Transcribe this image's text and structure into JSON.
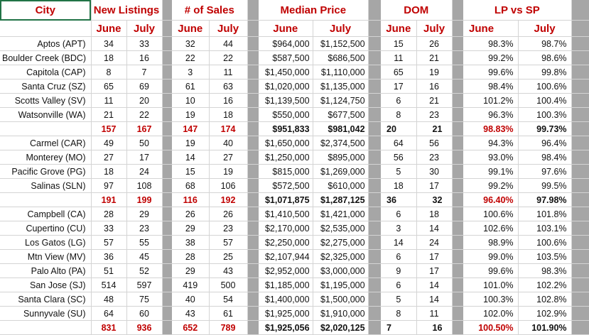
{
  "headers": {
    "city": "City",
    "new_listings": "New Listings",
    "sales": "# of Sales",
    "median_price": "Median Price",
    "dom": "DOM",
    "lp_sp": "LP vs SP"
  },
  "subheaders": {
    "nl_june": "June",
    "nl_july": "July",
    "s_june": "June",
    "s_july": "July",
    "mp_june": "June",
    "mp_july": "July",
    "d_june": "June",
    "d_july": "July",
    "l_june": "June",
    "l_july": "July"
  },
  "rows": [
    {
      "type": "data",
      "city": "Aptos (APT)",
      "nl_june": "34",
      "nl_july": "33",
      "s_june": "32",
      "s_july": "44",
      "mp_june": "$964,000",
      "mp_july": "$1,152,500",
      "d_june": "15",
      "d_july": "26",
      "l_june": "98.3%",
      "l_july": "98.7%"
    },
    {
      "type": "data",
      "city": "Boulder Creek (BDC)",
      "nl_june": "18",
      "nl_july": "16",
      "s_june": "22",
      "s_july": "22",
      "mp_june": "$587,500",
      "mp_july": "$686,500",
      "d_june": "11",
      "d_july": "21",
      "l_june": "99.2%",
      "l_july": "98.6%"
    },
    {
      "type": "data",
      "city": "Capitola (CAP)",
      "nl_june": "8",
      "nl_july": "7",
      "s_june": "3",
      "s_july": "11",
      "mp_june": "$1,450,000",
      "mp_july": "$1,110,000",
      "d_june": "65",
      "d_july": "19",
      "l_june": "99.6%",
      "l_july": "99.8%"
    },
    {
      "type": "data",
      "city": "Santa Cruz (SZ)",
      "nl_june": "65",
      "nl_july": "69",
      "s_june": "61",
      "s_july": "63",
      "mp_june": "$1,020,000",
      "mp_july": "$1,135,000",
      "d_june": "17",
      "d_july": "16",
      "l_june": "98.4%",
      "l_july": "100.6%"
    },
    {
      "type": "data",
      "city": "Scotts Valley (SV)",
      "nl_june": "11",
      "nl_july": "20",
      "s_june": "10",
      "s_july": "16",
      "mp_june": "$1,139,500",
      "mp_july": "$1,124,750",
      "d_june": "6",
      "d_july": "21",
      "l_june": "101.2%",
      "l_july": "100.4%"
    },
    {
      "type": "data",
      "city": "Watsonville (WA)",
      "nl_june": "21",
      "nl_july": "22",
      "s_june": "19",
      "s_july": "18",
      "mp_june": "$550,000",
      "mp_july": "$677,500",
      "d_june": "8",
      "d_july": "23",
      "l_june": "96.3%",
      "l_july": "100.3%"
    },
    {
      "type": "total",
      "city": "",
      "nl_june": "157",
      "nl_july": "167",
      "s_june": "147",
      "s_july": "174",
      "mp_june": "$951,833",
      "mp_july": "$981,042",
      "d_june": "20",
      "d_july": "21",
      "l_june": "98.83%",
      "l_july": "99.73%"
    },
    {
      "type": "data",
      "city": "Carmel (CAR)",
      "nl_june": "49",
      "nl_july": "50",
      "s_june": "19",
      "s_july": "40",
      "mp_june": "$1,650,000",
      "mp_july": "$2,374,500",
      "d_june": "64",
      "d_july": "56",
      "l_june": "94.3%",
      "l_july": "96.4%"
    },
    {
      "type": "data",
      "city": "Monterey (MO)",
      "nl_june": "27",
      "nl_july": "17",
      "s_june": "14",
      "s_july": "27",
      "mp_june": "$1,250,000",
      "mp_july": "$895,000",
      "d_june": "56",
      "d_july": "23",
      "l_june": "93.0%",
      "l_july": "98.4%"
    },
    {
      "type": "data",
      "city": "Pacific Grove (PG)",
      "nl_june": "18",
      "nl_july": "24",
      "s_june": "15",
      "s_july": "19",
      "mp_june": "$815,000",
      "mp_july": "$1,269,000",
      "d_june": "5",
      "d_july": "30",
      "l_june": "99.1%",
      "l_july": "97.6%"
    },
    {
      "type": "data",
      "city": "Salinas (SLN)",
      "nl_june": "97",
      "nl_july": "108",
      "s_june": "68",
      "s_july": "106",
      "mp_june": "$572,500",
      "mp_july": "$610,000",
      "d_june": "18",
      "d_july": "17",
      "l_june": "99.2%",
      "l_july": "99.5%"
    },
    {
      "type": "total",
      "city": "",
      "nl_june": "191",
      "nl_july": "199",
      "s_june": "116",
      "s_july": "192",
      "mp_june": "$1,071,875",
      "mp_july": "$1,287,125",
      "d_june": "36",
      "d_july": "32",
      "l_june": "96.40%",
      "l_july": "97.98%"
    },
    {
      "type": "data",
      "city": "Campbell (CA)",
      "nl_june": "28",
      "nl_july": "29",
      "s_june": "26",
      "s_july": "26",
      "mp_june": "$1,410,500",
      "mp_july": "$1,421,000",
      "d_june": "6",
      "d_july": "18",
      "l_june": "100.6%",
      "l_july": "101.8%"
    },
    {
      "type": "data",
      "city": "Cupertino (CU)",
      "nl_june": "33",
      "nl_july": "23",
      "s_june": "29",
      "s_july": "23",
      "mp_june": "$2,170,000",
      "mp_july": "$2,535,000",
      "d_june": "3",
      "d_july": "14",
      "l_june": "102.6%",
      "l_july": "103.1%"
    },
    {
      "type": "data",
      "city": "Los Gatos (LG)",
      "nl_june": "57",
      "nl_july": "55",
      "s_june": "38",
      "s_july": "57",
      "mp_june": "$2,250,000",
      "mp_july": "$2,275,000",
      "d_june": "14",
      "d_july": "24",
      "l_june": "98.9%",
      "l_july": "100.6%"
    },
    {
      "type": "data",
      "city": "Mtn View (MV)",
      "nl_june": "36",
      "nl_july": "45",
      "s_june": "28",
      "s_july": "25",
      "mp_june": "$2,107,944",
      "mp_july": "$2,325,000",
      "d_june": "6",
      "d_july": "17",
      "l_june": "99.0%",
      "l_july": "103.5%"
    },
    {
      "type": "data",
      "city": "Palo Alto (PA)",
      "nl_june": "51",
      "nl_july": "52",
      "s_june": "29",
      "s_july": "43",
      "mp_june": "$2,952,000",
      "mp_july": "$3,000,000",
      "d_june": "9",
      "d_july": "17",
      "l_june": "99.6%",
      "l_july": "98.3%"
    },
    {
      "type": "data",
      "city": "San Jose (SJ)",
      "nl_june": "514",
      "nl_july": "597",
      "s_june": "419",
      "s_july": "500",
      "mp_june": "$1,185,000",
      "mp_july": "$1,195,000",
      "d_june": "6",
      "d_july": "14",
      "l_june": "101.0%",
      "l_july": "102.2%"
    },
    {
      "type": "data",
      "city": "Santa Clara (SC)",
      "nl_june": "48",
      "nl_july": "75",
      "s_june": "40",
      "s_july": "54",
      "mp_june": "$1,400,000",
      "mp_july": "$1,500,000",
      "d_june": "5",
      "d_july": "14",
      "l_june": "100.3%",
      "l_july": "102.8%"
    },
    {
      "type": "data",
      "city": "Sunnyvale (SU)",
      "nl_june": "64",
      "nl_july": "60",
      "s_june": "43",
      "s_july": "61",
      "mp_june": "$1,925,000",
      "mp_july": "$1,910,000",
      "d_june": "8",
      "d_july": "11",
      "l_june": "102.0%",
      "l_july": "102.9%"
    },
    {
      "type": "total",
      "city": "",
      "nl_june": "831",
      "nl_july": "936",
      "s_june": "652",
      "s_july": "789",
      "mp_june": "$1,925,056",
      "mp_july": "$2,020,125",
      "d_june": "7",
      "d_july": "16",
      "l_june": "100.50%",
      "l_july": "101.90%"
    }
  ]
}
